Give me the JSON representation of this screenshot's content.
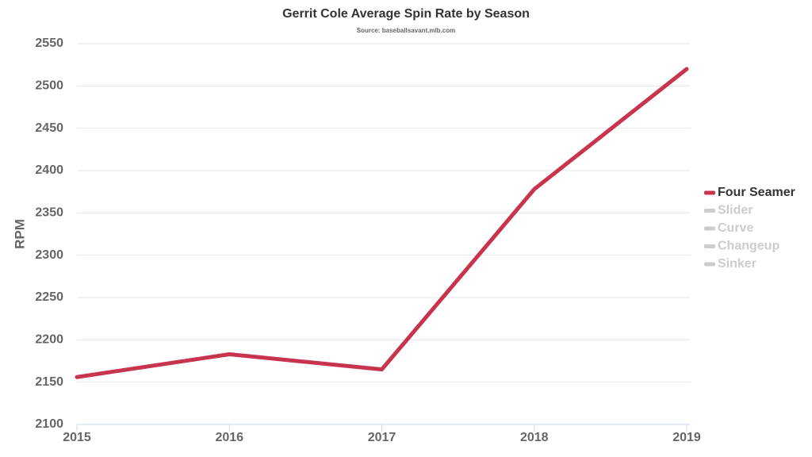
{
  "chart_data": {
    "type": "line",
    "title": "Gerrit Cole Average Spin Rate by Season",
    "subtitle": "Source: baseballsavant.mlb.com",
    "y_label": "RPM",
    "x": [
      2015,
      2016,
      2017,
      2018,
      2019
    ],
    "xlim": [
      2015,
      2019
    ],
    "xticks": [
      2015,
      2016,
      2017,
      2018,
      2019
    ],
    "ylim": [
      2100,
      2550
    ],
    "yticks": [
      2100,
      2150,
      2200,
      2250,
      2300,
      2350,
      2400,
      2450,
      2500,
      2550
    ],
    "grid": true,
    "legend": "right",
    "series": [
      {
        "name": "Four Seamer",
        "color": "#c8334e",
        "visible": true,
        "values": [
          2156,
          2183,
          2165,
          2378,
          2520
        ]
      },
      {
        "name": "Slider",
        "color": "#cccccc",
        "visible": false,
        "values": [
          null,
          null,
          null,
          null,
          null
        ]
      },
      {
        "name": "Curve",
        "color": "#cccccc",
        "visible": false,
        "values": [
          null,
          null,
          null,
          null,
          null
        ]
      },
      {
        "name": "Changeup",
        "color": "#cccccc",
        "visible": false,
        "values": [
          null,
          null,
          null,
          null,
          null
        ]
      },
      {
        "name": "Sinker",
        "color": "#cccccc",
        "visible": false,
        "values": [
          null,
          null,
          null,
          null,
          null
        ]
      }
    ]
  }
}
